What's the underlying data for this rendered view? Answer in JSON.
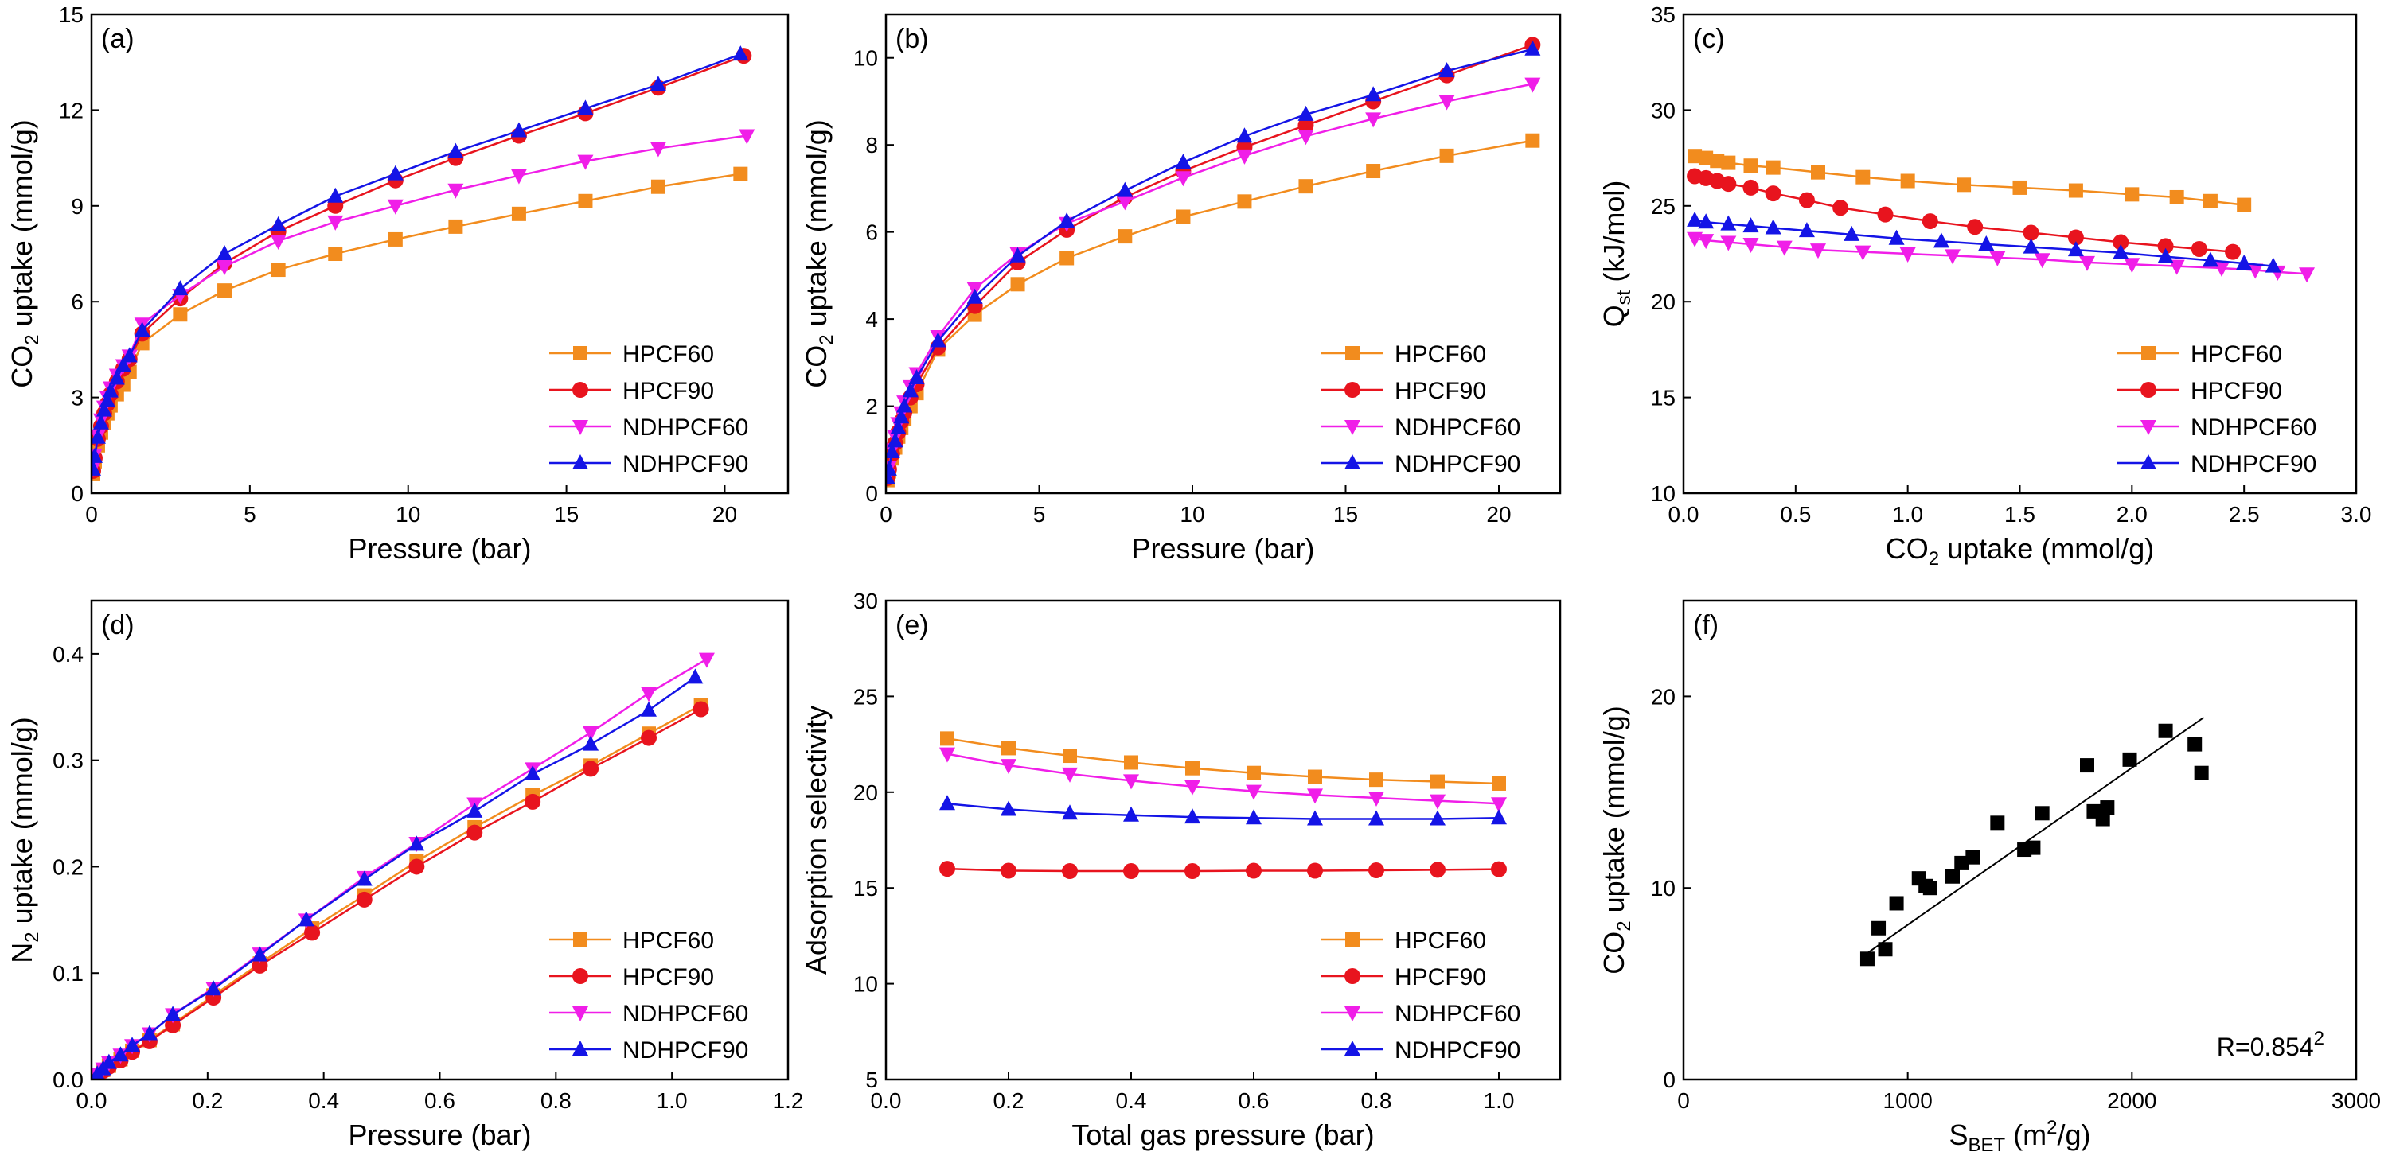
{
  "colors": {
    "HPCF60": "#F28C1E",
    "HPCF90": "#E8141E",
    "NDHPCF60": "#F01EE8",
    "NDHPCF90": "#1414E6",
    "scatter": "#000000"
  },
  "chart_data": [
    {
      "id": "a",
      "type": "line",
      "panel_label": "(a)",
      "xlabel": "Pressure (bar)",
      "ylabel": {
        "pre": "CO",
        "sub": "2",
        "post": " uptake (mmol/g)"
      },
      "xlim": [
        0,
        22
      ],
      "ylim": [
        0,
        15
      ],
      "xticks": [
        0,
        5,
        10,
        15,
        20
      ],
      "yticks": [
        0,
        3,
        6,
        9,
        12,
        15
      ],
      "legend_position": "bottom-right",
      "series": [
        {
          "name": "HPCF60",
          "marker": "square",
          "x": [
            0.05,
            0.1,
            0.2,
            0.3,
            0.4,
            0.5,
            0.6,
            0.8,
            1.0,
            1.2,
            1.6,
            2.8,
            4.2,
            5.9,
            7.7,
            9.6,
            11.5,
            13.5,
            15.6,
            17.9,
            20.5
          ],
          "y": [
            0.6,
            1.0,
            1.5,
            1.9,
            2.2,
            2.5,
            2.75,
            3.1,
            3.4,
            3.8,
            4.7,
            5.6,
            6.35,
            7.0,
            7.5,
            7.95,
            8.35,
            8.75,
            9.15,
            9.6,
            10.0
          ]
        },
        {
          "name": "HPCF90",
          "marker": "circle",
          "x": [
            0.05,
            0.1,
            0.2,
            0.3,
            0.4,
            0.5,
            0.6,
            0.8,
            1.0,
            1.2,
            1.6,
            2.8,
            4.2,
            5.9,
            7.7,
            9.6,
            11.5,
            13.5,
            15.6,
            17.9,
            20.6
          ],
          "y": [
            0.7,
            1.1,
            1.7,
            2.1,
            2.5,
            2.8,
            3.1,
            3.5,
            3.9,
            4.2,
            5.0,
            6.1,
            7.2,
            8.2,
            9.0,
            9.8,
            10.5,
            11.2,
            11.9,
            12.7,
            13.7
          ]
        },
        {
          "name": "NDHPCF60",
          "marker": "triangle-down",
          "x": [
            0.05,
            0.1,
            0.2,
            0.3,
            0.4,
            0.5,
            0.6,
            0.8,
            1.0,
            1.2,
            1.6,
            2.8,
            4.2,
            5.9,
            7.7,
            9.6,
            11.5,
            13.5,
            15.6,
            17.9,
            20.7
          ],
          "y": [
            0.8,
            1.2,
            1.8,
            2.3,
            2.7,
            3.0,
            3.3,
            3.7,
            4.0,
            4.3,
            5.3,
            6.2,
            7.1,
            7.9,
            8.5,
            9.0,
            9.5,
            9.95,
            10.4,
            10.8,
            11.2
          ]
        },
        {
          "name": "NDHPCF90",
          "marker": "triangle-up",
          "x": [
            0.05,
            0.1,
            0.2,
            0.3,
            0.4,
            0.5,
            0.6,
            0.8,
            1.0,
            1.2,
            1.6,
            2.8,
            4.2,
            5.9,
            7.7,
            9.6,
            11.5,
            13.5,
            15.6,
            17.9,
            20.5
          ],
          "y": [
            0.75,
            1.15,
            1.75,
            2.2,
            2.6,
            2.9,
            3.2,
            3.6,
            4.0,
            4.3,
            5.1,
            6.4,
            7.5,
            8.4,
            9.3,
            10.0,
            10.7,
            11.35,
            12.05,
            12.8,
            13.75
          ]
        }
      ]
    },
    {
      "id": "b",
      "type": "line",
      "panel_label": "(b)",
      "xlabel": "Pressure (bar)",
      "ylabel": {
        "pre": "CO",
        "sub": "2",
        "post": " uptake (mmol/g)"
      },
      "xlim": [
        0,
        22
      ],
      "ylim": [
        0,
        11
      ],
      "xticks": [
        0,
        5,
        10,
        15,
        20
      ],
      "yticks": [
        0,
        2,
        4,
        6,
        8,
        10
      ],
      "legend_position": "bottom-right",
      "series": [
        {
          "name": "HPCF60",
          "marker": "square",
          "x": [
            0.05,
            0.1,
            0.2,
            0.3,
            0.4,
            0.5,
            0.6,
            0.8,
            1.0,
            1.7,
            2.9,
            4.3,
            5.9,
            7.8,
            9.7,
            11.7,
            13.7,
            15.9,
            18.3,
            21.1
          ],
          "y": [
            0.3,
            0.5,
            0.8,
            1.05,
            1.3,
            1.5,
            1.7,
            2.0,
            2.3,
            3.3,
            4.1,
            4.8,
            5.4,
            5.9,
            6.35,
            6.7,
            7.05,
            7.4,
            7.75,
            8.1
          ]
        },
        {
          "name": "HPCF90",
          "marker": "circle",
          "x": [
            0.05,
            0.1,
            0.2,
            0.3,
            0.4,
            0.5,
            0.6,
            0.8,
            1.0,
            1.7,
            2.9,
            4.3,
            5.9,
            7.8,
            9.7,
            11.7,
            13.7,
            15.9,
            18.3,
            21.1
          ],
          "y": [
            0.35,
            0.55,
            0.9,
            1.15,
            1.4,
            1.65,
            1.85,
            2.2,
            2.5,
            3.35,
            4.3,
            5.3,
            6.05,
            6.8,
            7.4,
            7.95,
            8.45,
            9.0,
            9.6,
            10.3
          ]
        },
        {
          "name": "NDHPCF60",
          "marker": "triangle-down",
          "x": [
            0.05,
            0.1,
            0.2,
            0.3,
            0.4,
            0.5,
            0.6,
            0.8,
            1.0,
            1.7,
            2.9,
            4.3,
            5.9,
            7.8,
            9.7,
            11.7,
            13.7,
            15.9,
            18.3,
            21.1
          ],
          "y": [
            0.4,
            0.6,
            1.0,
            1.3,
            1.6,
            1.85,
            2.1,
            2.45,
            2.75,
            3.6,
            4.7,
            5.5,
            6.2,
            6.7,
            7.25,
            7.75,
            8.2,
            8.6,
            9.0,
            9.4
          ]
        },
        {
          "name": "NDHPCF90",
          "marker": "triangle-up",
          "x": [
            0.05,
            0.1,
            0.2,
            0.3,
            0.4,
            0.5,
            0.6,
            0.8,
            1.0,
            1.7,
            2.9,
            4.3,
            5.9,
            7.8,
            9.7,
            11.7,
            13.7,
            15.9,
            18.3,
            21.1
          ],
          "y": [
            0.35,
            0.55,
            0.95,
            1.2,
            1.5,
            1.75,
            2.0,
            2.35,
            2.65,
            3.5,
            4.5,
            5.45,
            6.25,
            6.95,
            7.6,
            8.2,
            8.7,
            9.15,
            9.7,
            10.2
          ]
        }
      ]
    },
    {
      "id": "c",
      "type": "line",
      "panel_label": "(c)",
      "xlabel": {
        "pre": "CO",
        "sub": "2",
        "post": " uptake (mmol/g)"
      },
      "ylabel": {
        "pre": "Q",
        "sub": "st",
        "post": " (kJ/mol)"
      },
      "xlim": [
        0,
        3.0
      ],
      "ylim": [
        10,
        35
      ],
      "xticks": [
        0.0,
        0.5,
        1.0,
        1.5,
        2.0,
        2.5,
        3.0
      ],
      "yticks": [
        10,
        15,
        20,
        25,
        30,
        35
      ],
      "xtick_labels": [
        "0.0",
        "0.5",
        "1.0",
        "1.5",
        "2.0",
        "2.5",
        "3.0"
      ],
      "legend_position": "bottom-right",
      "series": [
        {
          "name": "HPCF60",
          "marker": "square",
          "x": [
            0.05,
            0.1,
            0.15,
            0.2,
            0.3,
            0.4,
            0.6,
            0.8,
            1.0,
            1.25,
            1.5,
            1.75,
            2.0,
            2.2,
            2.35,
            2.5
          ],
          "y": [
            27.6,
            27.5,
            27.35,
            27.25,
            27.1,
            27.0,
            26.75,
            26.5,
            26.3,
            26.1,
            25.95,
            25.8,
            25.6,
            25.45,
            25.25,
            25.05
          ]
        },
        {
          "name": "HPCF90",
          "marker": "circle",
          "x": [
            0.05,
            0.1,
            0.15,
            0.2,
            0.3,
            0.4,
            0.55,
            0.7,
            0.9,
            1.1,
            1.3,
            1.55,
            1.75,
            1.95,
            2.15,
            2.3,
            2.45
          ],
          "y": [
            26.55,
            26.45,
            26.3,
            26.15,
            25.95,
            25.65,
            25.3,
            24.9,
            24.55,
            24.2,
            23.9,
            23.6,
            23.35,
            23.1,
            22.9,
            22.75,
            22.6
          ]
        },
        {
          "name": "NDHPCF60",
          "marker": "triangle-down",
          "x": [
            0.05,
            0.1,
            0.2,
            0.3,
            0.45,
            0.6,
            0.8,
            1.0,
            1.2,
            1.4,
            1.6,
            1.8,
            2.0,
            2.2,
            2.4,
            2.55,
            2.65,
            2.78
          ],
          "y": [
            23.3,
            23.2,
            23.1,
            23.0,
            22.85,
            22.7,
            22.6,
            22.5,
            22.4,
            22.3,
            22.2,
            22.05,
            21.95,
            21.85,
            21.75,
            21.65,
            21.55,
            21.45
          ]
        },
        {
          "name": "NDHPCF90",
          "marker": "triangle-up",
          "x": [
            0.05,
            0.1,
            0.2,
            0.3,
            0.4,
            0.55,
            0.75,
            0.95,
            1.15,
            1.35,
            1.55,
            1.75,
            1.95,
            2.15,
            2.35,
            2.5,
            2.63
          ],
          "y": [
            24.25,
            24.15,
            24.05,
            23.95,
            23.85,
            23.7,
            23.5,
            23.3,
            23.15,
            23.0,
            22.85,
            22.7,
            22.55,
            22.35,
            22.15,
            22.0,
            21.85
          ]
        }
      ]
    },
    {
      "id": "d",
      "type": "line",
      "panel_label": "(d)",
      "xlabel": "Pressure (bar)",
      "ylabel": {
        "pre": "N",
        "sub": "2",
        "post": " uptake (mmol/g)"
      },
      "xlim": [
        0,
        1.2
      ],
      "ylim": [
        0,
        0.45
      ],
      "xticks": [
        0.0,
        0.2,
        0.4,
        0.6,
        0.8,
        1.0,
        1.2
      ],
      "yticks": [
        0.0,
        0.1,
        0.2,
        0.3,
        0.4
      ],
      "xtick_labels": [
        "0.0",
        "0.2",
        "0.4",
        "0.6",
        "0.8",
        "1.0",
        "1.2"
      ],
      "ytick_labels": [
        "0.0",
        "0.1",
        "0.2",
        "0.3",
        "0.4"
      ],
      "legend_position": "bottom-right",
      "series": [
        {
          "name": "HPCF60",
          "marker": "square",
          "x": [
            0.01,
            0.02,
            0.03,
            0.05,
            0.07,
            0.1,
            0.14,
            0.21,
            0.29,
            0.38,
            0.47,
            0.56,
            0.66,
            0.76,
            0.86,
            0.96,
            1.05
          ],
          "y": [
            0.004,
            0.009,
            0.013,
            0.019,
            0.027,
            0.037,
            0.052,
            0.079,
            0.109,
            0.142,
            0.173,
            0.205,
            0.237,
            0.267,
            0.295,
            0.325,
            0.352
          ]
        },
        {
          "name": "HPCF90",
          "marker": "circle",
          "x": [
            0.01,
            0.02,
            0.03,
            0.05,
            0.07,
            0.1,
            0.14,
            0.21,
            0.29,
            0.38,
            0.47,
            0.56,
            0.66,
            0.76,
            0.86,
            0.96,
            1.05
          ],
          "y": [
            0.004,
            0.008,
            0.012,
            0.018,
            0.026,
            0.036,
            0.051,
            0.077,
            0.107,
            0.138,
            0.169,
            0.2,
            0.232,
            0.261,
            0.292,
            0.321,
            0.348
          ]
        },
        {
          "name": "NDHPCF60",
          "marker": "triangle-down",
          "x": [
            0.01,
            0.02,
            0.03,
            0.05,
            0.07,
            0.1,
            0.14,
            0.21,
            0.29,
            0.37,
            0.47,
            0.56,
            0.66,
            0.76,
            0.86,
            0.96,
            1.06
          ],
          "y": [
            0.005,
            0.01,
            0.016,
            0.023,
            0.032,
            0.043,
            0.061,
            0.086,
            0.118,
            0.15,
            0.19,
            0.222,
            0.259,
            0.292,
            0.326,
            0.363,
            0.395
          ]
        },
        {
          "name": "NDHPCF90",
          "marker": "triangle-up",
          "x": [
            0.01,
            0.02,
            0.03,
            0.05,
            0.07,
            0.1,
            0.14,
            0.21,
            0.29,
            0.37,
            0.47,
            0.56,
            0.66,
            0.76,
            0.86,
            0.96,
            1.04
          ],
          "y": [
            0.005,
            0.01,
            0.016,
            0.023,
            0.032,
            0.043,
            0.061,
            0.085,
            0.117,
            0.15,
            0.188,
            0.221,
            0.252,
            0.287,
            0.315,
            0.347,
            0.378
          ]
        }
      ]
    },
    {
      "id": "e",
      "type": "line",
      "panel_label": "(e)",
      "xlabel": "Total gas pressure (bar)",
      "ylabel": "Adsorption selectivity",
      "xlim": [
        0,
        1.1
      ],
      "ylim": [
        5,
        30
      ],
      "xticks": [
        0.0,
        0.2,
        0.4,
        0.6,
        0.8,
        1.0
      ],
      "yticks": [
        5,
        10,
        15,
        20,
        25,
        30
      ],
      "xtick_labels": [
        "0.0",
        "0.2",
        "0.4",
        "0.6",
        "0.8",
        "1.0"
      ],
      "legend_position": "bottom-right",
      "series": [
        {
          "name": "HPCF60",
          "marker": "square",
          "x": [
            0.1,
            0.2,
            0.3,
            0.4,
            0.5,
            0.6,
            0.7,
            0.8,
            0.9,
            1.0
          ],
          "y": [
            22.8,
            22.3,
            21.9,
            21.55,
            21.25,
            21.0,
            20.8,
            20.65,
            20.55,
            20.45
          ]
        },
        {
          "name": "HPCF90",
          "marker": "circle",
          "x": [
            0.1,
            0.2,
            0.3,
            0.4,
            0.5,
            0.6,
            0.7,
            0.8,
            0.9,
            1.0
          ],
          "y": [
            16.0,
            15.9,
            15.88,
            15.88,
            15.88,
            15.9,
            15.9,
            15.92,
            15.95,
            15.98
          ]
        },
        {
          "name": "NDHPCF60",
          "marker": "triangle-down",
          "x": [
            0.1,
            0.2,
            0.3,
            0.4,
            0.5,
            0.6,
            0.7,
            0.8,
            0.9,
            1.0
          ],
          "y": [
            22.0,
            21.4,
            20.95,
            20.6,
            20.3,
            20.05,
            19.85,
            19.7,
            19.55,
            19.4
          ]
        },
        {
          "name": "NDHPCF90",
          "marker": "triangle-up",
          "x": [
            0.1,
            0.2,
            0.3,
            0.4,
            0.5,
            0.6,
            0.7,
            0.8,
            0.9,
            1.0
          ],
          "y": [
            19.4,
            19.1,
            18.9,
            18.8,
            18.7,
            18.65,
            18.6,
            18.6,
            18.6,
            18.65
          ]
        }
      ]
    },
    {
      "id": "f",
      "type": "scatter",
      "panel_label": "(f)",
      "xlabel": {
        "pre": "S",
        "sub": "BET",
        "post": " (m",
        "sup": "2",
        "post2": "/g)"
      },
      "ylabel": {
        "pre": "CO",
        "sub": "2",
        "post": " uptake (mmol/g)"
      },
      "xlim": [
        0,
        3000
      ],
      "ylim": [
        0,
        25
      ],
      "xticks": [
        0,
        1000,
        2000,
        3000
      ],
      "yticks": [
        0,
        10,
        20
      ],
      "annotation": {
        "pre": "R",
        "sup": "2",
        "post": "=0.854"
      },
      "points": {
        "x": [
          820,
          870,
          900,
          950,
          1050,
          1080,
          1100,
          1200,
          1240,
          1290,
          1400,
          1520,
          1560,
          1600,
          1800,
          1830,
          1870,
          1890,
          1990,
          2150,
          2280,
          2310
        ],
        "y": [
          6.3,
          7.9,
          6.8,
          9.2,
          10.5,
          10.1,
          10.0,
          10.6,
          11.3,
          11.6,
          13.4,
          12.0,
          12.1,
          13.9,
          16.4,
          14.0,
          13.6,
          14.2,
          16.7,
          18.2,
          17.5,
          16.0
        ]
      },
      "fit": {
        "x": [
          820,
          2320
        ],
        "y": [
          6.6,
          18.9
        ]
      }
    }
  ]
}
